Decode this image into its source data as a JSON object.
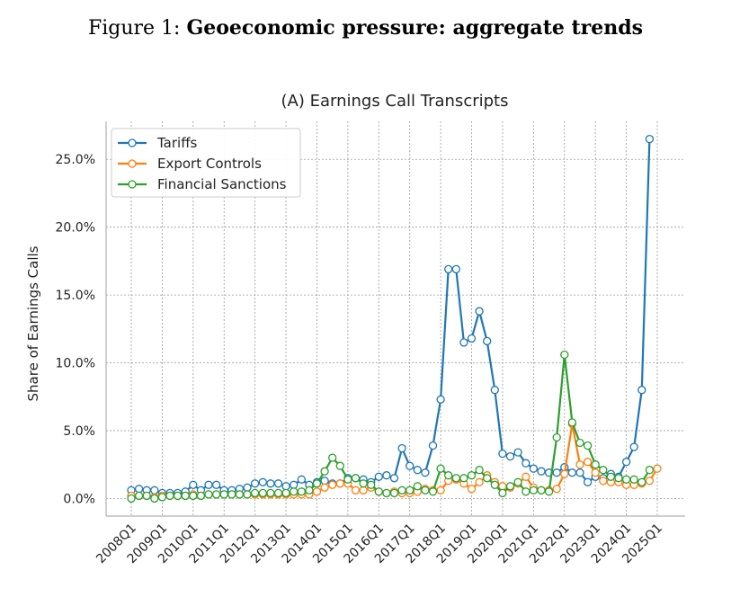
{
  "figure": {
    "prefix": "Figure 1:",
    "title": "Geoeconomic pressure: aggregate trends"
  },
  "chart_data": {
    "type": "line",
    "title": "(A) Earnings Call Transcripts",
    "xlabel": "",
    "ylabel": "Share of Earnings Calls",
    "x_ticks": [
      "2008Q1",
      "2009Q1",
      "2010Q1",
      "2011Q1",
      "2012Q1",
      "2013Q1",
      "2014Q1",
      "2015Q1",
      "2016Q1",
      "2017Q1",
      "2018Q1",
      "2019Q1",
      "2020Q1",
      "2021Q1",
      "2022Q1",
      "2023Q1",
      "2024Q1",
      "2025Q1"
    ],
    "y_ticks": [
      "0.0%",
      "5.0%",
      "10.0%",
      "15.0%",
      "20.0%",
      "25.0%"
    ],
    "ylim": [
      -1.3,
      27.8
    ],
    "grid": true,
    "legend_position": "top-left",
    "x": [
      "2008Q1",
      "2008Q2",
      "2008Q3",
      "2008Q4",
      "2009Q1",
      "2009Q2",
      "2009Q3",
      "2009Q4",
      "2010Q1",
      "2010Q2",
      "2010Q3",
      "2010Q4",
      "2011Q1",
      "2011Q2",
      "2011Q3",
      "2011Q4",
      "2012Q1",
      "2012Q2",
      "2012Q3",
      "2012Q4",
      "2013Q1",
      "2013Q2",
      "2013Q3",
      "2013Q4",
      "2014Q1",
      "2014Q2",
      "2014Q3",
      "2014Q4",
      "2015Q1",
      "2015Q2",
      "2015Q3",
      "2015Q4",
      "2016Q1",
      "2016Q2",
      "2016Q3",
      "2016Q4",
      "2017Q1",
      "2017Q2",
      "2017Q3",
      "2017Q4",
      "2018Q1",
      "2018Q2",
      "2018Q3",
      "2018Q4",
      "2019Q1",
      "2019Q2",
      "2019Q3",
      "2019Q4",
      "2020Q1",
      "2020Q2",
      "2020Q3",
      "2020Q4",
      "2021Q1",
      "2021Q2",
      "2021Q3",
      "2021Q4",
      "2022Q1",
      "2022Q2",
      "2022Q3",
      "2022Q4",
      "2023Q1",
      "2023Q2",
      "2023Q3",
      "2023Q4",
      "2024Q1",
      "2024Q2",
      "2024Q3",
      "2024Q4",
      "2025Q1"
    ],
    "series": [
      {
        "name": "Tariffs",
        "color": "#1f77b4",
        "values": [
          0.6,
          0.7,
          0.6,
          0.6,
          0.4,
          0.4,
          0.4,
          0.5,
          1.0,
          0.6,
          1.0,
          1.0,
          0.6,
          0.6,
          0.7,
          0.8,
          1.1,
          1.2,
          1.1,
          1.1,
          0.9,
          1.0,
          1.4,
          1.0,
          1.2,
          1.3,
          1.1,
          1.1,
          1.5,
          1.5,
          1.4,
          1.2,
          1.6,
          1.7,
          1.5,
          3.7,
          2.4,
          2.1,
          1.9,
          3.9,
          7.3,
          16.9,
          16.9,
          11.5,
          11.8,
          13.8,
          11.6,
          8.0,
          3.3,
          3.1,
          3.4,
          2.6,
          2.2,
          2.0,
          1.9,
          1.9,
          2.3,
          1.9,
          1.9,
          1.2,
          1.6,
          1.5,
          1.8,
          1.6,
          2.7,
          3.8,
          8.0,
          26.5,
          null
        ]
      },
      {
        "name": "Export Controls",
        "color": "#ff7f0e",
        "values": [
          0.2,
          0.2,
          0.2,
          0.1,
          0.2,
          0.2,
          0.2,
          0.2,
          0.3,
          0.2,
          0.3,
          0.3,
          0.3,
          0.3,
          0.3,
          0.3,
          0.3,
          0.3,
          0.3,
          0.3,
          0.3,
          0.3,
          0.3,
          0.3,
          0.5,
          0.8,
          1.0,
          1.1,
          1.1,
          0.6,
          0.6,
          0.8,
          0.5,
          0.4,
          0.5,
          0.4,
          0.4,
          0.5,
          0.7,
          0.6,
          0.6,
          1.3,
          1.4,
          1.1,
          0.7,
          1.2,
          1.7,
          1.2,
          0.9,
          0.8,
          1.1,
          1.6,
          0.8,
          0.6,
          0.6,
          0.7,
          1.8,
          5.5,
          2.5,
          2.7,
          1.9,
          1.3,
          1.2,
          1.2,
          1.0,
          1.0,
          1.1,
          1.3,
          2.2
        ]
      },
      {
        "name": "Financial Sanctions",
        "color": "#2ca02c",
        "values": [
          0.0,
          0.2,
          0.2,
          0.0,
          0.1,
          0.2,
          0.2,
          0.2,
          0.2,
          0.2,
          0.3,
          0.3,
          0.3,
          0.3,
          0.3,
          0.3,
          0.4,
          0.4,
          0.4,
          0.4,
          0.4,
          0.5,
          0.5,
          0.6,
          1.1,
          2.0,
          3.0,
          2.4,
          1.4,
          1.5,
          1.1,
          1.0,
          0.5,
          0.4,
          0.4,
          0.6,
          0.6,
          0.9,
          0.6,
          0.5,
          2.2,
          1.7,
          1.5,
          1.5,
          1.7,
          2.1,
          1.5,
          1.0,
          0.4,
          0.9,
          1.2,
          0.5,
          0.6,
          0.6,
          0.5,
          4.5,
          10.6,
          5.6,
          4.1,
          3.9,
          2.5,
          2.1,
          1.6,
          1.5,
          1.4,
          1.4,
          1.2,
          2.1,
          null
        ]
      }
    ]
  }
}
